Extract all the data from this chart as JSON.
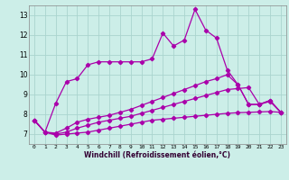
{
  "xlabel": "Windchill (Refroidissement éolien,°C)",
  "background_color": "#cceee8",
  "grid_color": "#aad4ce",
  "line_color": "#aa00aa",
  "xlim": [
    -0.5,
    23.5
  ],
  "ylim": [
    6.5,
    13.5
  ],
  "yticks": [
    7,
    8,
    9,
    10,
    11,
    12,
    13
  ],
  "xticks": [
    0,
    1,
    2,
    3,
    4,
    5,
    6,
    7,
    8,
    9,
    10,
    11,
    12,
    13,
    14,
    15,
    16,
    17,
    18,
    19,
    20,
    21,
    22,
    23
  ],
  "series": [
    [
      7.7,
      7.1,
      6.95,
      7.0,
      7.05,
      7.1,
      7.2,
      7.3,
      7.4,
      7.5,
      7.6,
      7.7,
      7.75,
      7.8,
      7.85,
      7.9,
      7.95,
      8.0,
      8.05,
      8.08,
      8.1,
      8.12,
      8.14,
      8.1
    ],
    [
      7.7,
      7.1,
      7.0,
      7.1,
      7.3,
      7.45,
      7.6,
      7.7,
      7.8,
      7.9,
      8.05,
      8.2,
      8.35,
      8.5,
      8.65,
      8.8,
      8.95,
      9.1,
      9.25,
      9.3,
      9.35,
      8.5,
      8.65,
      8.1
    ],
    [
      7.7,
      7.1,
      7.05,
      7.3,
      7.6,
      7.75,
      7.85,
      7.95,
      8.1,
      8.25,
      8.45,
      8.65,
      8.85,
      9.05,
      9.25,
      9.45,
      9.65,
      9.8,
      10.0,
      9.5,
      8.5,
      8.5,
      8.7,
      8.1
    ],
    [
      7.7,
      7.1,
      8.55,
      9.65,
      9.8,
      10.5,
      10.65,
      10.65,
      10.65,
      10.65,
      10.65,
      10.8,
      12.1,
      11.45,
      11.75,
      13.3,
      12.25,
      11.85,
      10.25,
      9.5,
      8.5,
      8.5,
      8.7,
      8.1
    ]
  ]
}
